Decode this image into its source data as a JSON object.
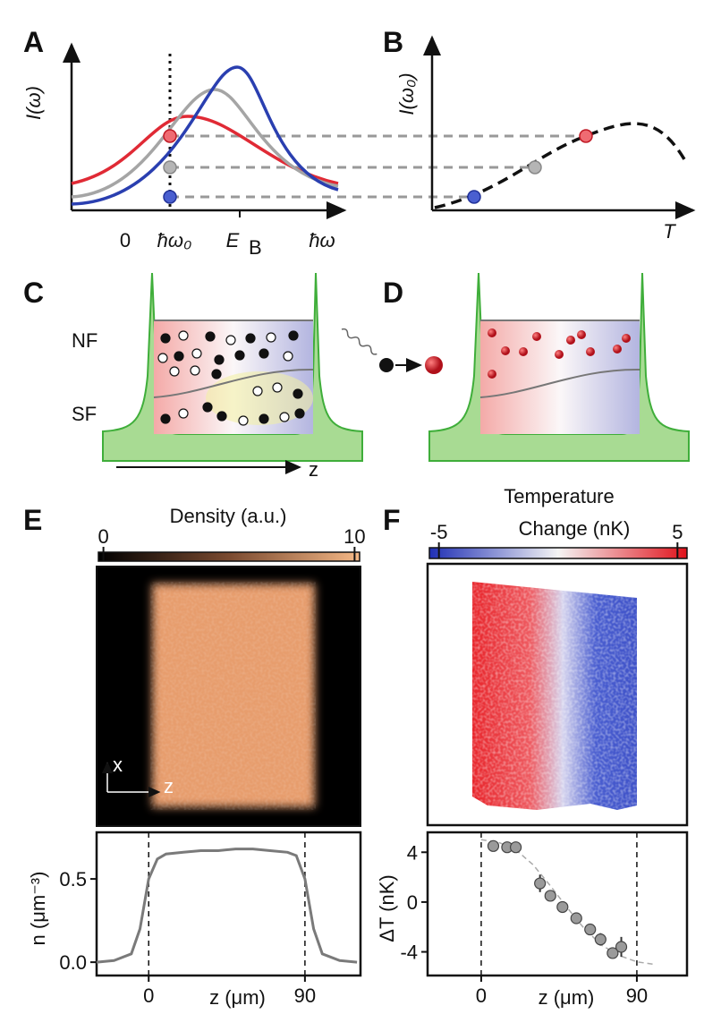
{
  "panel_labels": [
    "A",
    "B",
    "C",
    "D",
    "E",
    "F"
  ],
  "panel_a": {
    "ylabel": "I(ω)",
    "tick_zero": "0",
    "tick_omega0": "ħω₀",
    "eb_main": "E",
    "eb_sub": "B",
    "xlabel": "ħω"
  },
  "panel_b": {
    "ylabel": "I(ω₀)",
    "xlabel": "T"
  },
  "panel_c": {
    "upper": "NF",
    "lower": "SF",
    "axis": "z"
  },
  "panel_e": {
    "colorbar_title": "Density (a.u.)",
    "colorbar_lim": [
      -0.2,
      10.2
    ],
    "colorbar_ticks": [
      0,
      10
    ],
    "image_axes": [
      "x",
      "z"
    ]
  },
  "panel_f": {
    "colorbar_title": [
      "Temperature",
      "Change (nK)"
    ],
    "colorbar_lim": [
      -5.4,
      5.4
    ],
    "colorbar_ticks": [
      -5,
      5
    ]
  },
  "chart_data": [
    {
      "type": "line",
      "xlabel": "z (μm)",
      "ylabel": "n (μm⁻³)",
      "color": "#7a7a7a",
      "x": [
        -30,
        -20,
        -10,
        -5,
        0,
        5,
        10,
        20,
        30,
        40,
        50,
        60,
        70,
        80,
        85,
        90,
        95,
        100,
        110,
        120
      ],
      "values": [
        0,
        0.01,
        0.05,
        0.2,
        0.5,
        0.62,
        0.65,
        0.66,
        0.67,
        0.67,
        0.68,
        0.68,
        0.67,
        0.66,
        0.64,
        0.5,
        0.2,
        0.05,
        0.01,
        0
      ],
      "xlim": [
        -30,
        122
      ],
      "xticks": [
        0,
        90
      ],
      "ylim": [
        -0.08,
        0.78
      ],
      "yticks": [
        {
          "value": 0,
          "label": "0.0"
        },
        0.5
      ],
      "vlines": [
        0,
        90
      ]
    },
    {
      "type": "scatter",
      "xlabel": "z (μm)",
      "ylabel": "ΔT (nK)",
      "color": "#9a9a9a",
      "x": [
        7,
        15,
        20,
        34,
        40,
        47,
        55,
        63,
        69,
        76,
        81
      ],
      "values": [
        4.5,
        4.4,
        4.4,
        1.5,
        0.5,
        -0.4,
        -1.3,
        -2.2,
        -3.0,
        -4.1,
        -3.6
      ],
      "errors": [
        0.4,
        0.3,
        0.3,
        0.7,
        0.4,
        0.4,
        0.4,
        0.4,
        0.5,
        0.4,
        0.8
      ],
      "fit_x": [
        0,
        10,
        20,
        30,
        40,
        50,
        60,
        70,
        80,
        90,
        100
      ],
      "fit_values": [
        5.0,
        4.8,
        4.2,
        3.0,
        1.3,
        -0.5,
        -2.2,
        -3.5,
        -4.3,
        -4.8,
        -5.0
      ],
      "xlim": [
        -31,
        119
      ],
      "xticks": [
        0,
        90
      ],
      "ylim": [
        -5.9,
        5.6
      ],
      "yticks": [
        -4,
        0,
        4
      ],
      "vlines": [
        0,
        90
      ]
    }
  ]
}
